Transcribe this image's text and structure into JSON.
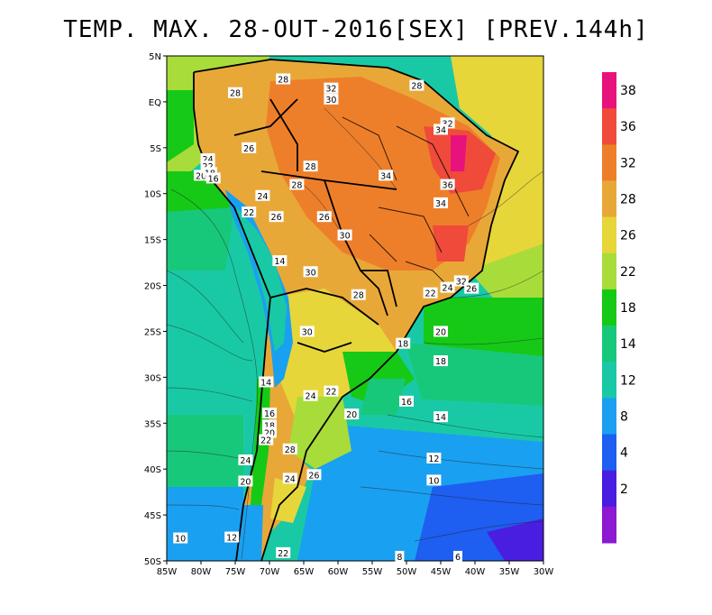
{
  "title": "TEMP. MAX. 28-OUT-2016[SEX] [PREV.144h]",
  "map": {
    "lat_ticks": [
      "5N",
      "EQ",
      "5S",
      "10S",
      "15S",
      "20S",
      "25S",
      "30S",
      "35S",
      "40S",
      "45S",
      "50S"
    ],
    "lon_ticks": [
      "85W",
      "80W",
      "75W",
      "70W",
      "65W",
      "60W",
      "55W",
      "50W",
      "45W",
      "40W",
      "35W",
      "30W"
    ],
    "extent": {
      "lon": [
        -85,
        -30
      ],
      "lat": [
        -50,
        5
      ]
    }
  },
  "colorbar": {
    "labels": [
      "38",
      "36",
      "32",
      "28",
      "26",
      "22",
      "18",
      "14",
      "12",
      "8",
      "4",
      "2"
    ],
    "colors": [
      "#e8127c",
      "#ef4a3a",
      "#ee7f2a",
      "#e8a838",
      "#e7d63a",
      "#a8dc3a",
      "#16c916",
      "#18c87a",
      "#19c9a6",
      "#1aa0f0",
      "#1e5ef0",
      "#4a1ee0",
      "#8c1ad0"
    ]
  },
  "contour_labels": [
    {
      "text": "28",
      "lon": -75,
      "lat": 1
    },
    {
      "text": "28",
      "lon": -68,
      "lat": 2.5
    },
    {
      "text": "32",
      "lon": -61,
      "lat": 1.5
    },
    {
      "text": "30",
      "lon": -61,
      "lat": 0.3
    },
    {
      "text": "28",
      "lon": -48.5,
      "lat": 1.8
    },
    {
      "text": "24",
      "lon": -79,
      "lat": -6.2
    },
    {
      "text": "22",
      "lon": -79,
      "lat": -7
    },
    {
      "text": "20",
      "lon": -80,
      "lat": -8
    },
    {
      "text": "18",
      "lon": -78.7,
      "lat": -7.7
    },
    {
      "text": "16",
      "lon": -78.2,
      "lat": -8.3
    },
    {
      "text": "26",
      "lon": -73,
      "lat": -5
    },
    {
      "text": "28",
      "lon": -64,
      "lat": -7
    },
    {
      "text": "28",
      "lon": -66,
      "lat": -9
    },
    {
      "text": "24",
      "lon": -71,
      "lat": -10.2
    },
    {
      "text": "22",
      "lon": -73,
      "lat": -12
    },
    {
      "text": "26",
      "lon": -69,
      "lat": -12.5
    },
    {
      "text": "26",
      "lon": -62,
      "lat": -12.5
    },
    {
      "text": "30",
      "lon": -59,
      "lat": -14.5
    },
    {
      "text": "34",
      "lon": -53,
      "lat": -8
    },
    {
      "text": "32",
      "lon": -44,
      "lat": -2.3
    },
    {
      "text": "34",
      "lon": -45,
      "lat": -3
    },
    {
      "text": "36",
      "lon": -44,
      "lat": -9
    },
    {
      "text": "34",
      "lon": -45,
      "lat": -11
    },
    {
      "text": "14",
      "lon": -68.5,
      "lat": -17.3
    },
    {
      "text": "30",
      "lon": -64,
      "lat": -18.5
    },
    {
      "text": "28",
      "lon": -57,
      "lat": -21
    },
    {
      "text": "32",
      "lon": -42,
      "lat": -19.5
    },
    {
      "text": "26",
      "lon": -40.5,
      "lat": -20.3
    },
    {
      "text": "24",
      "lon": -44,
      "lat": -20.2
    },
    {
      "text": "22",
      "lon": -46.5,
      "lat": -20.8
    },
    {
      "text": "30",
      "lon": -64.5,
      "lat": -25
    },
    {
      "text": "18",
      "lon": -50.5,
      "lat": -26.3
    },
    {
      "text": "20",
      "lon": -45,
      "lat": -25
    },
    {
      "text": "18",
      "lon": -45,
      "lat": -28.2
    },
    {
      "text": "14",
      "lon": -70.5,
      "lat": -30.5
    },
    {
      "text": "24",
      "lon": -64,
      "lat": -32
    },
    {
      "text": "22",
      "lon": -61,
      "lat": -31.5
    },
    {
      "text": "16",
      "lon": -50,
      "lat": -32.6
    },
    {
      "text": "20",
      "lon": -58,
      "lat": -34
    },
    {
      "text": "14",
      "lon": -45,
      "lat": -34.3
    },
    {
      "text": "16",
      "lon": -70,
      "lat": -33.9
    },
    {
      "text": "18",
      "lon": -70,
      "lat": -35.2
    },
    {
      "text": "20",
      "lon": -70,
      "lat": -36
    },
    {
      "text": "22",
      "lon": -70.5,
      "lat": -36.8
    },
    {
      "text": "28",
      "lon": -67,
      "lat": -37.8
    },
    {
      "text": "24",
      "lon": -73.5,
      "lat": -39
    },
    {
      "text": "12",
      "lon": -46,
      "lat": -38.8
    },
    {
      "text": "24",
      "lon": -67,
      "lat": -41
    },
    {
      "text": "26",
      "lon": -63.5,
      "lat": -40.6
    },
    {
      "text": "20",
      "lon": -73.5,
      "lat": -41.3
    },
    {
      "text": "10",
      "lon": -46,
      "lat": -41.2
    },
    {
      "text": "10",
      "lon": -83,
      "lat": -47.5
    },
    {
      "text": "12",
      "lon": -75.5,
      "lat": -47.4
    },
    {
      "text": "22",
      "lon": -68,
      "lat": -49.1
    },
    {
      "text": "8",
      "lon": -51,
      "lat": -49.5
    },
    {
      "text": "6",
      "lon": -42.5,
      "lat": -49.5
    }
  ]
}
